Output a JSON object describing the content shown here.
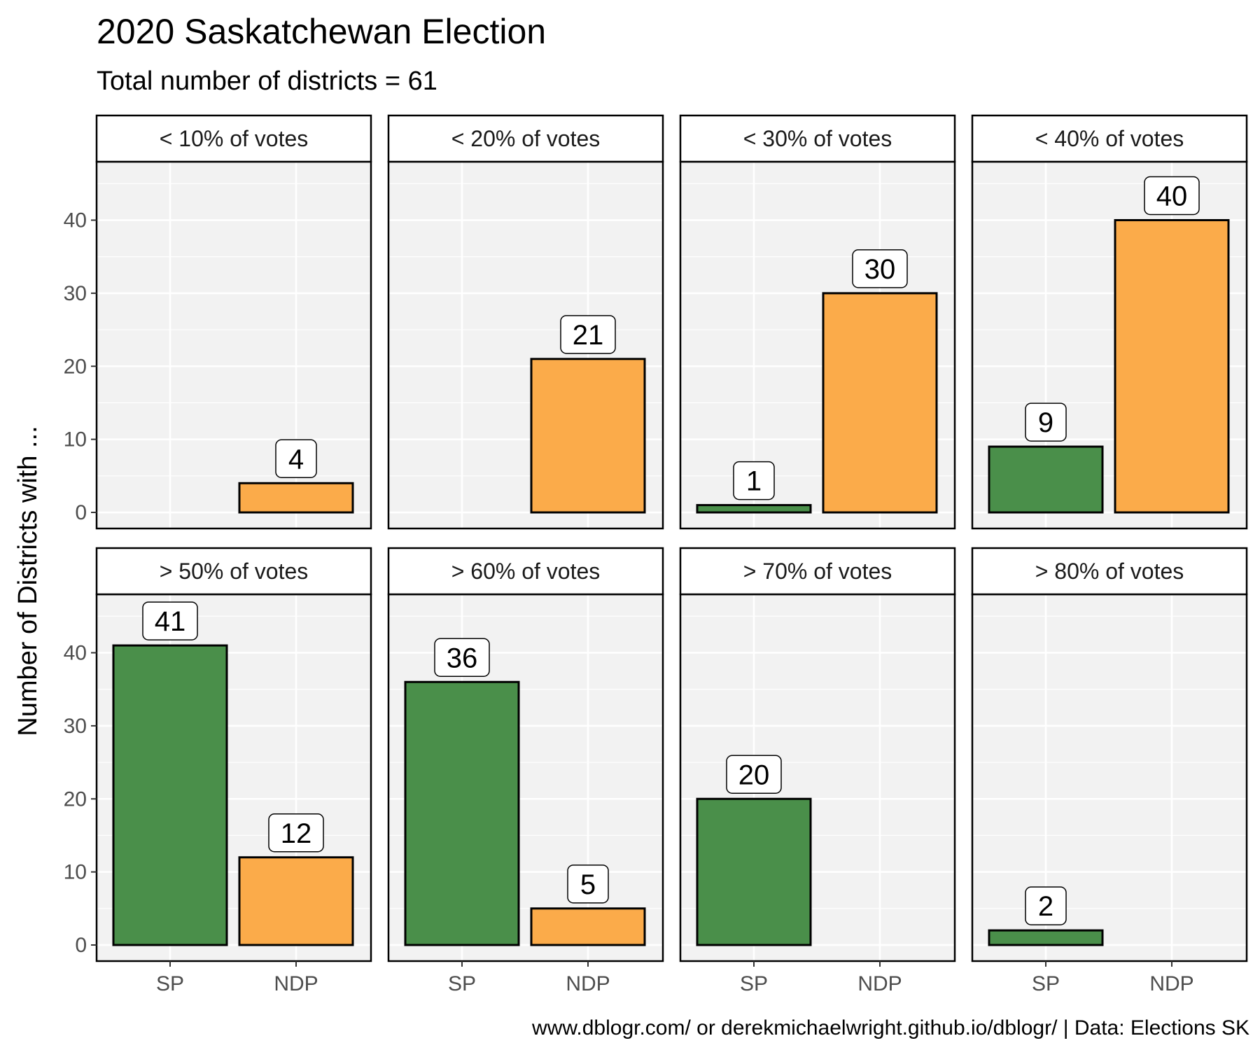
{
  "title": "2020 Saskatchewan Election",
  "subtitle": "Total number of districts = 61",
  "caption": "www.dblogr.com/ or derekmichaelwright.github.io/dblogr/ | Data: Elections SK",
  "colors": {
    "SP": "#4a8f4a",
    "NDP": "#fbab4a",
    "panel_bg": "#f2f2f2",
    "grid": "#ffffff",
    "border": "#000000"
  },
  "chart_data": {
    "type": "bar",
    "facet_type": "grid 2x4",
    "ylabel": "Number of Districts with ...",
    "xlabel": "",
    "categories": [
      "SP",
      "NDP"
    ],
    "ylim": [
      0,
      48
    ],
    "yticks": [
      0,
      10,
      20,
      30,
      40
    ],
    "grid": true,
    "panels": [
      {
        "label": "< 10% of votes",
        "values": [
          null,
          4
        ]
      },
      {
        "label": "< 20% of votes",
        "values": [
          null,
          21
        ]
      },
      {
        "label": "< 30% of votes",
        "values": [
          1,
          30
        ]
      },
      {
        "label": "< 40% of votes",
        "values": [
          9,
          40
        ]
      },
      {
        "label": "> 50% of votes",
        "values": [
          41,
          12
        ]
      },
      {
        "label": "> 60% of votes",
        "values": [
          36,
          5
        ]
      },
      {
        "label": "> 70% of votes",
        "values": [
          20,
          null
        ]
      },
      {
        "label": "> 80% of votes",
        "values": [
          2,
          null
        ]
      }
    ]
  }
}
